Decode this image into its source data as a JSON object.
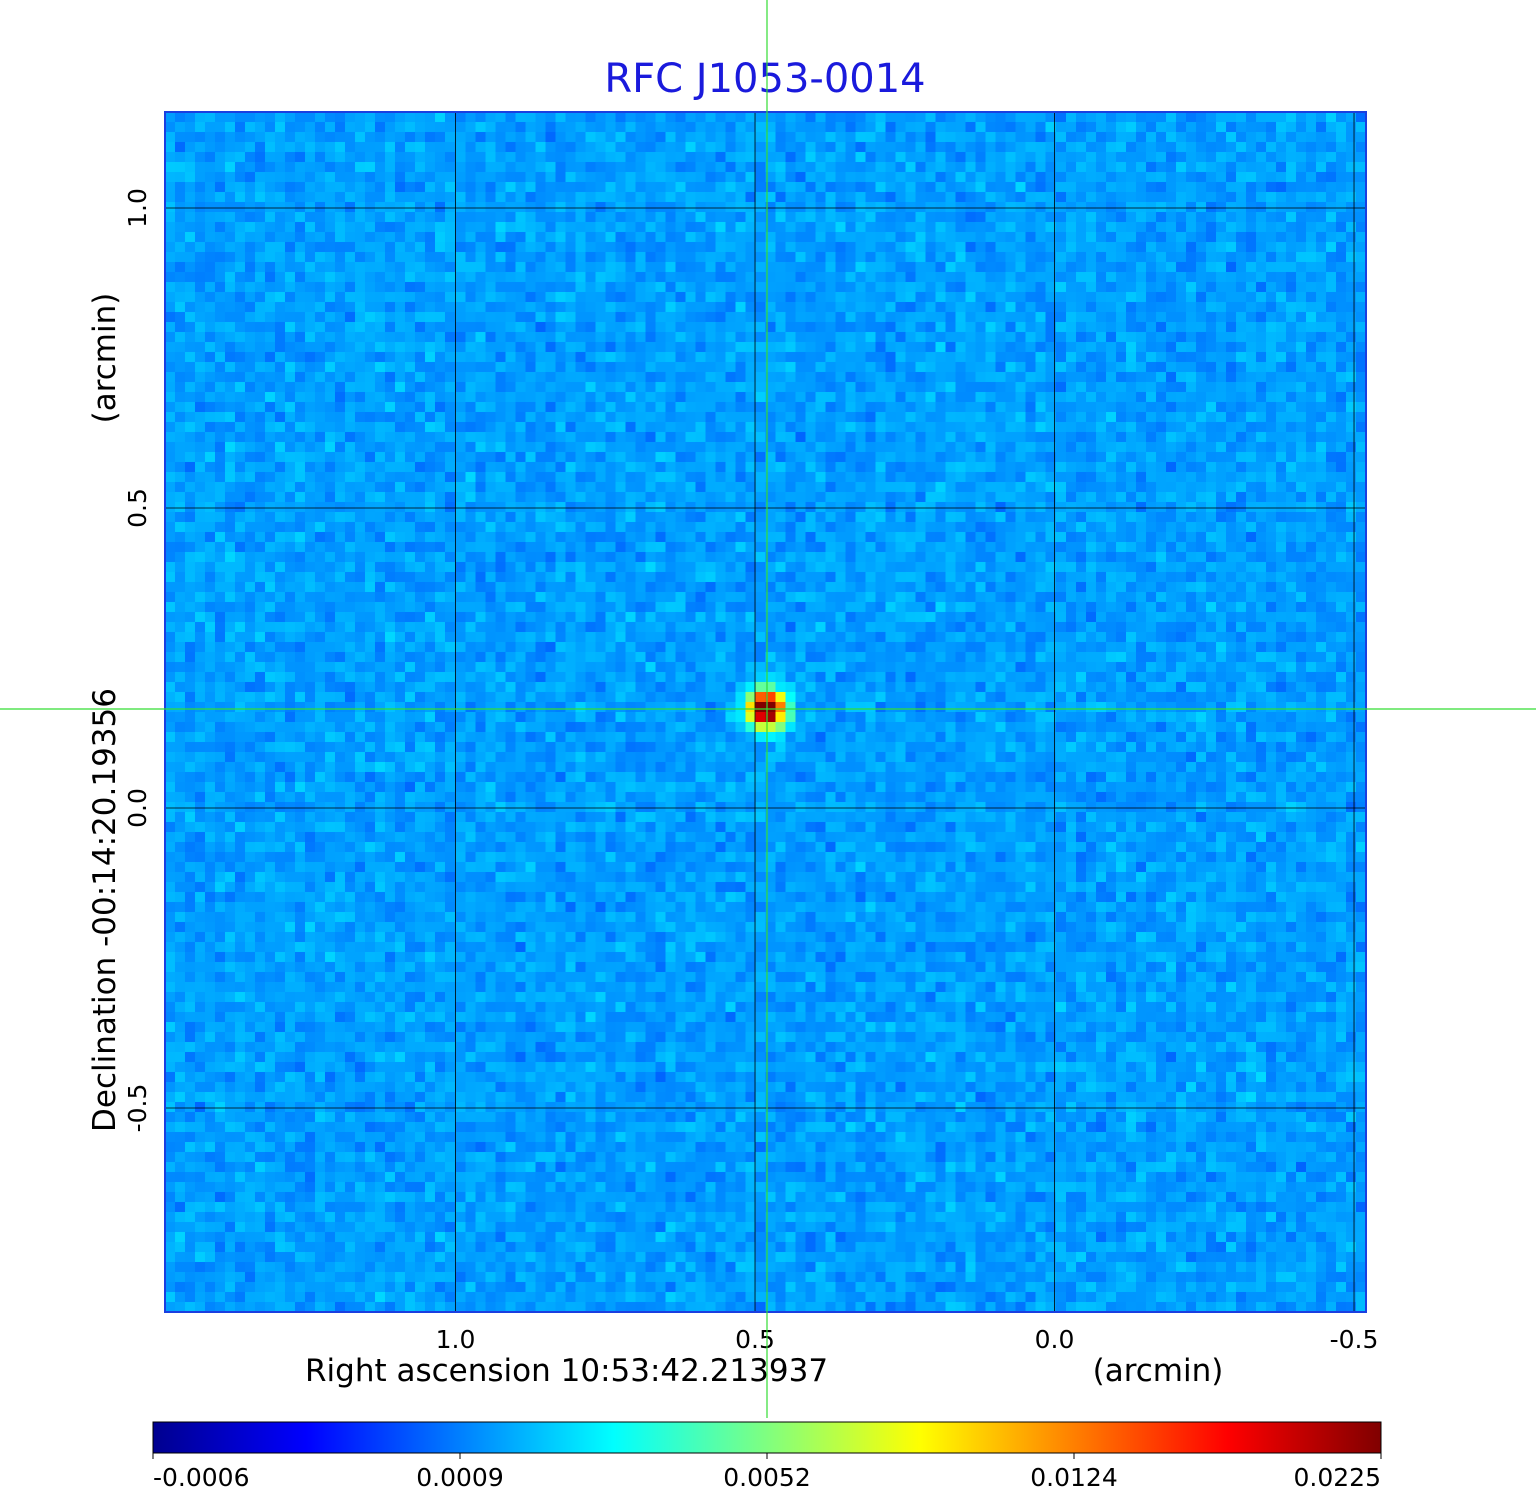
{
  "chart_data": {
    "type": "heatmap",
    "title": "RFC J1053-0014",
    "xlabel": "Right ascension  10:53:42.213937",
    "xlabel_unit": "(arcmin)",
    "ylabel": "Declination  -00:14:20.19356",
    "ylabel_unit": "(arcmin)",
    "x_ticks": [
      {
        "label": "1.0",
        "value": 1.0
      },
      {
        "label": "0.5",
        "value": 0.5
      },
      {
        "label": "0.0",
        "value": 0.0
      },
      {
        "label": "-0.5",
        "value": -0.5
      }
    ],
    "y_ticks": [
      {
        "label": "1.0",
        "value": 1.0
      },
      {
        "label": "0.5",
        "value": 0.5
      },
      {
        "label": "0.0",
        "value": 0.0
      },
      {
        "label": "-0.5",
        "value": -0.5
      }
    ],
    "xlim": [
      1.485,
      -0.52
    ],
    "ylim": [
      -0.84,
      1.16
    ],
    "grid": true,
    "crosshair": {
      "x": 0.48,
      "y": 0.165,
      "color": "#33dd33"
    },
    "source": {
      "x": 0.48,
      "y": 0.165,
      "peak": 0.0225
    },
    "background_level": 0.0004,
    "colormap": "jet",
    "colorbar": {
      "ticks": [
        "-0.0006",
        "0.0009",
        "0.0052",
        "0.0124",
        "0.0225"
      ]
    }
  }
}
